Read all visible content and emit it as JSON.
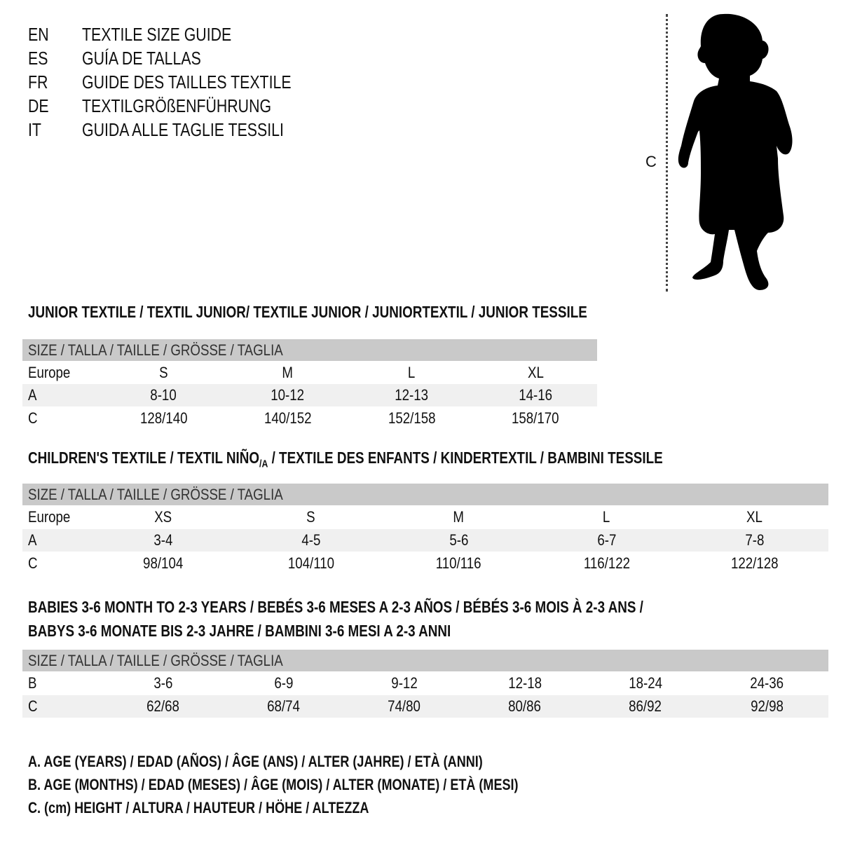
{
  "header": {
    "languages": [
      {
        "code": "EN",
        "title": "TEXTILE SIZE GUIDE"
      },
      {
        "code": "ES",
        "title": "GUÍA DE TALLAS"
      },
      {
        "code": "FR",
        "title": "GUIDE DES TAILLES TEXTILE"
      },
      {
        "code": "DE",
        "title": "TEXTILGRÖßENFÜHRUNG"
      },
      {
        "code": "IT",
        "title": "GUIDA ALLE TAGLIE TESSILI"
      }
    ]
  },
  "figure": {
    "measure_label": "C",
    "icon": "child-silhouette-icon"
  },
  "size_header": "SIZE / TALLA / TAILLE / GRÖSSE / TAGLIA",
  "junior": {
    "title": "JUNIOR TEXTILE / TEXTIL JUNIOR/ TEXTILE JUNIOR / JUNIORTEXTIL / JUNIOR TESSILE",
    "rows": [
      {
        "label": "Europe",
        "values": [
          "S",
          "M",
          "L",
          "XL"
        ]
      },
      {
        "label": "A",
        "values": [
          "8-10",
          "10-12",
          "12-13",
          "14-16"
        ]
      },
      {
        "label": "C",
        "values": [
          "128/140",
          "140/152",
          "152/158",
          "158/170"
        ]
      }
    ]
  },
  "children": {
    "title_pre": "CHILDREN'S TEXTILE / TEXTIL NIÑO",
    "title_sub": "/A",
    "title_post": " / TEXTILE DES ENFANTS / KINDERTEXTIL / BAMBINI TESSILE",
    "rows": [
      {
        "label": "Europe",
        "values": [
          "XS",
          "S",
          "M",
          "L",
          "XL"
        ]
      },
      {
        "label": "A",
        "values": [
          "3-4",
          "4-5",
          "5-6",
          "6-7",
          "7-8"
        ]
      },
      {
        "label": "C",
        "values": [
          "98/104",
          "104/110",
          "110/116",
          "116/122",
          "122/128"
        ]
      }
    ]
  },
  "babies": {
    "title_line1": "BABIES 3-6 MONTH TO 2-3 YEARS / BEBÉS 3-6 MESES A 2-3 AÑOS / BÉBÉS 3-6 MOIS À 2-3 ANS /",
    "title_line2": "BABYS 3-6 MONATE BIS 2-3 JAHRE / BAMBINI 3-6 MESI A 2-3 ANNI",
    "rows": [
      {
        "label": "B",
        "values": [
          "3-6",
          "6-9",
          "9-12",
          "12-18",
          "18-24",
          "24-36"
        ]
      },
      {
        "label": "C",
        "values": [
          "62/68",
          "68/74",
          "74/80",
          "80/86",
          "86/92",
          "92/98"
        ]
      }
    ]
  },
  "legend": [
    "A. AGE (YEARS) / EDAD (AÑOS) / ÂGE (ANS) / ALTER (JAHRE) / ETÀ (ANNI)",
    "B. AGE (MONTHS) / EDAD (MESES) / ÂGE (MOIS) / ALTER (MONATE) / ETÀ (MESI)",
    "C. (cm) HEIGHT / ALTURA / HAUTEUR / HÖHE / ALTEZZA"
  ],
  "colors": {
    "header_band": "#c9c9c9",
    "alt_row": "#f0f0f0",
    "text": "#111111"
  }
}
